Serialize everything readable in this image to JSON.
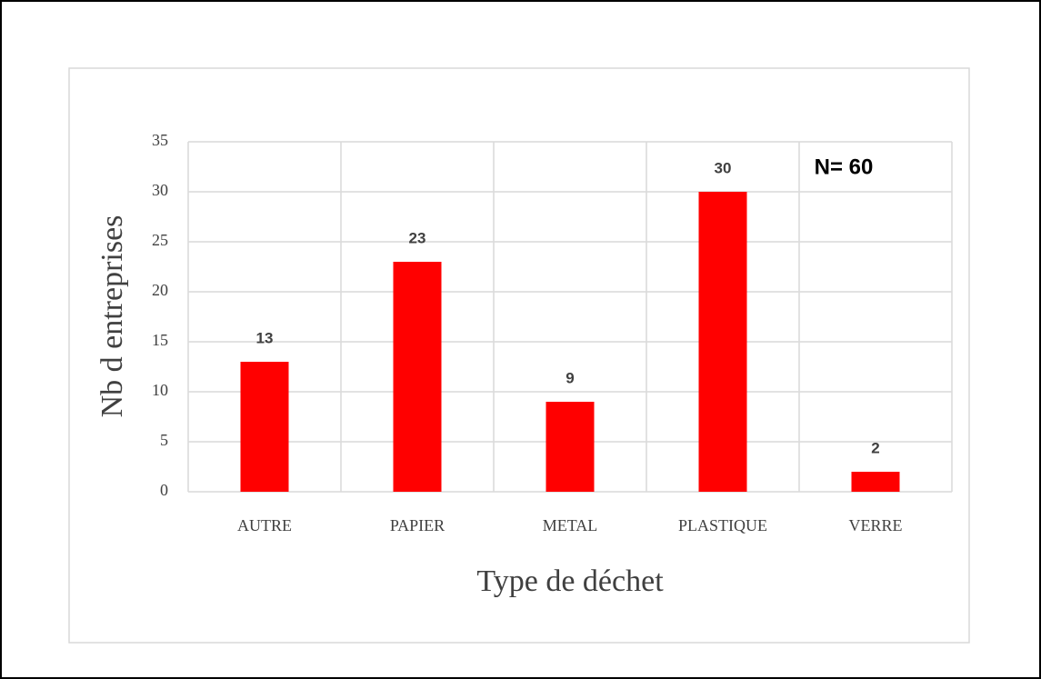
{
  "chart_data": {
    "type": "bar",
    "categories": [
      "AUTRE",
      "PAPIER",
      "METAL",
      "PLASTIQUE",
      "VERRE"
    ],
    "values": [
      13,
      23,
      9,
      30,
      2
    ],
    "color": "#ff0000",
    "ylim": [
      0,
      35
    ],
    "yticks": [
      0,
      5,
      10,
      15,
      20,
      25,
      30,
      35
    ],
    "xlabel": "Type de déchet",
    "ylabel": "Nb d entreprises",
    "annotation": "N= 60",
    "grid": true
  }
}
